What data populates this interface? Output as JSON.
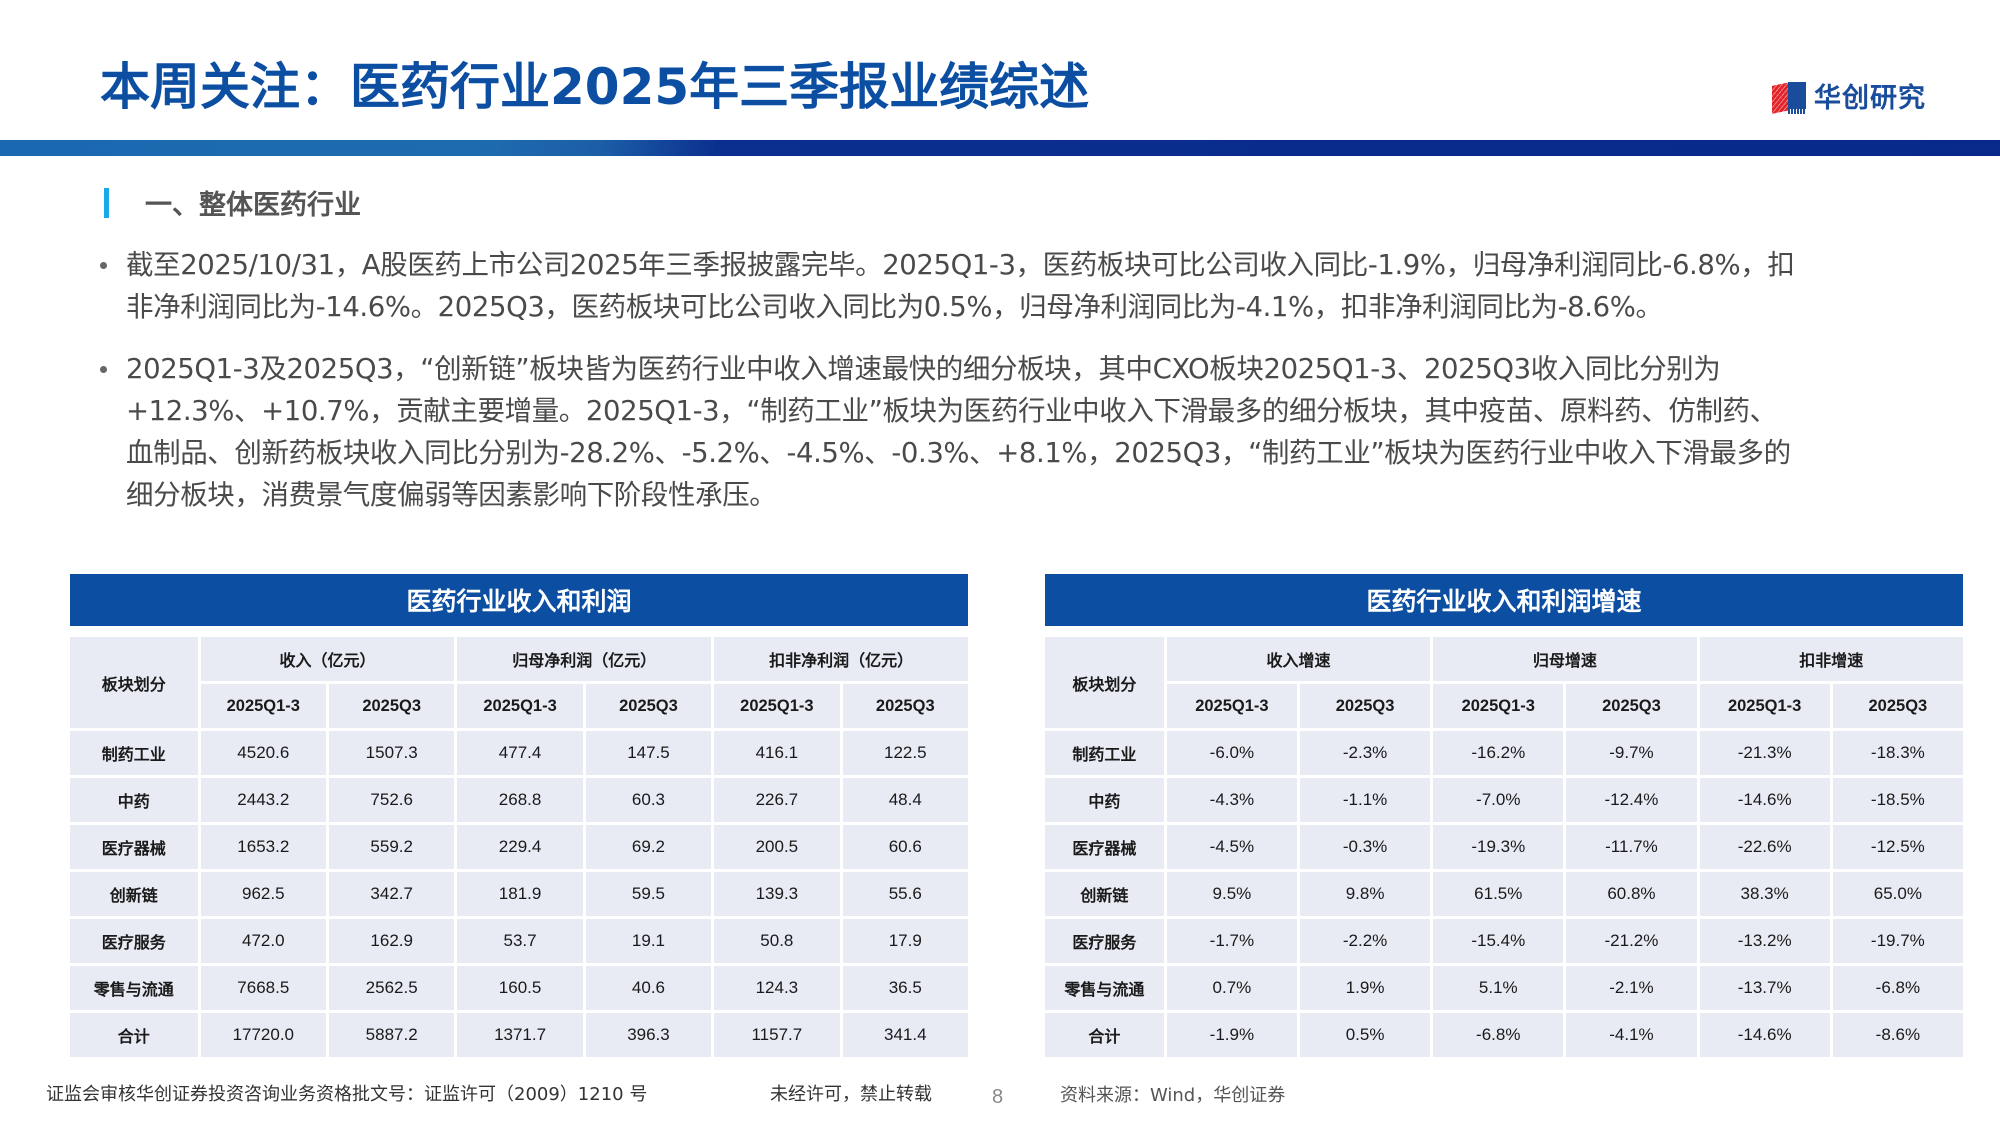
{
  "header": {
    "title": "本周关注：医药行业2025年三季报业绩综述",
    "logo_text": "华创研究",
    "brand_color": "#0c4ea2",
    "accent_color": "#19a9e8"
  },
  "section": {
    "title": "一、整体医药行业"
  },
  "bullets": [
    "截至2025/10/31，A股医药上市公司2025年三季报披露完毕。2025Q1-3，医药板块可比公司收入同比-1.9%，归母净利润同比-6.8%，扣非净利润同比为-14.6%。2025Q3，医药板块可比公司收入同比为0.5%，归母净利润同比为-4.1%，扣非净利润同比为-8.6%。",
    "2025Q1-3及2025Q3，“创新链”板块皆为医药行业中收入增速最快的细分板块，其中CXO板块2025Q1-3、2025Q3收入同比分别为+12.3%、+10.7%，贡献主要增量。2025Q1-3，“制药工业”板块为医药行业中收入下滑最多的细分板块，其中疫苗、原料药、仿制药、血制品、创新药板块收入同比分别为-28.2%、-5.2%、-4.5%、-0.3%、+8.1%，2025Q3，“制药工业”板块为医药行业中收入下滑最多的细分板块，消费景气度偏弱等因素影响下阶段性承压。"
  ],
  "table_left": {
    "title": "医药行业收入和利润",
    "row_header": "板块划分",
    "groups": [
      "收入（亿元）",
      "归母净利润（亿元）",
      "扣非净利润（亿元）"
    ],
    "periods": [
      "2025Q1-3",
      "2025Q3",
      "2025Q1-3",
      "2025Q3",
      "2025Q1-3",
      "2025Q3"
    ],
    "rows": [
      {
        "label": "制药工业",
        "values": [
          "4520.6",
          "1507.3",
          "477.4",
          "147.5",
          "416.1",
          "122.5"
        ]
      },
      {
        "label": "中药",
        "values": [
          "2443.2",
          "752.6",
          "268.8",
          "60.3",
          "226.7",
          "48.4"
        ]
      },
      {
        "label": "医疗器械",
        "values": [
          "1653.2",
          "559.2",
          "229.4",
          "69.2",
          "200.5",
          "60.6"
        ]
      },
      {
        "label": "创新链",
        "values": [
          "962.5",
          "342.7",
          "181.9",
          "59.5",
          "139.3",
          "55.6"
        ]
      },
      {
        "label": "医疗服务",
        "values": [
          "472.0",
          "162.9",
          "53.7",
          "19.1",
          "50.8",
          "17.9"
        ]
      },
      {
        "label": "零售与流通",
        "values": [
          "7668.5",
          "2562.5",
          "160.5",
          "40.6",
          "124.3",
          "36.5"
        ]
      },
      {
        "label": "合计",
        "values": [
          "17720.0",
          "5887.2",
          "1371.7",
          "396.3",
          "1157.7",
          "341.4"
        ]
      }
    ]
  },
  "table_right": {
    "title": "医药行业收入和利润增速",
    "row_header": "板块划分",
    "groups": [
      "收入增速",
      "归母增速",
      "扣非增速"
    ],
    "periods": [
      "2025Q1-3",
      "2025Q3",
      "2025Q1-3",
      "2025Q3",
      "2025Q1-3",
      "2025Q3"
    ],
    "rows": [
      {
        "label": "制药工业",
        "values": [
          "-6.0%",
          "-2.3%",
          "-16.2%",
          "-9.7%",
          "-21.3%",
          "-18.3%"
        ]
      },
      {
        "label": "中药",
        "values": [
          "-4.3%",
          "-1.1%",
          "-7.0%",
          "-12.4%",
          "-14.6%",
          "-18.5%"
        ]
      },
      {
        "label": "医疗器械",
        "values": [
          "-4.5%",
          "-0.3%",
          "-19.3%",
          "-11.7%",
          "-22.6%",
          "-12.5%"
        ]
      },
      {
        "label": "创新链",
        "values": [
          "9.5%",
          "9.8%",
          "61.5%",
          "60.8%",
          "38.3%",
          "65.0%"
        ]
      },
      {
        "label": "医疗服务",
        "values": [
          "-1.7%",
          "-2.2%",
          "-15.4%",
          "-21.2%",
          "-13.2%",
          "-19.7%"
        ]
      },
      {
        "label": "零售与流通",
        "values": [
          "0.7%",
          "1.9%",
          "5.1%",
          "-2.1%",
          "-13.7%",
          "-6.8%"
        ]
      },
      {
        "label": "合计",
        "values": [
          "-1.9%",
          "0.5%",
          "-6.8%",
          "-4.1%",
          "-14.6%",
          "-8.6%"
        ]
      }
    ]
  },
  "footer": {
    "license": "证监会审核华创证券投资咨询业务资格批文号：证监许可（2009）1210 号",
    "notice": "未经许可，禁止转载",
    "page_number": "8",
    "source": "资料来源：Wind，华创证券"
  }
}
